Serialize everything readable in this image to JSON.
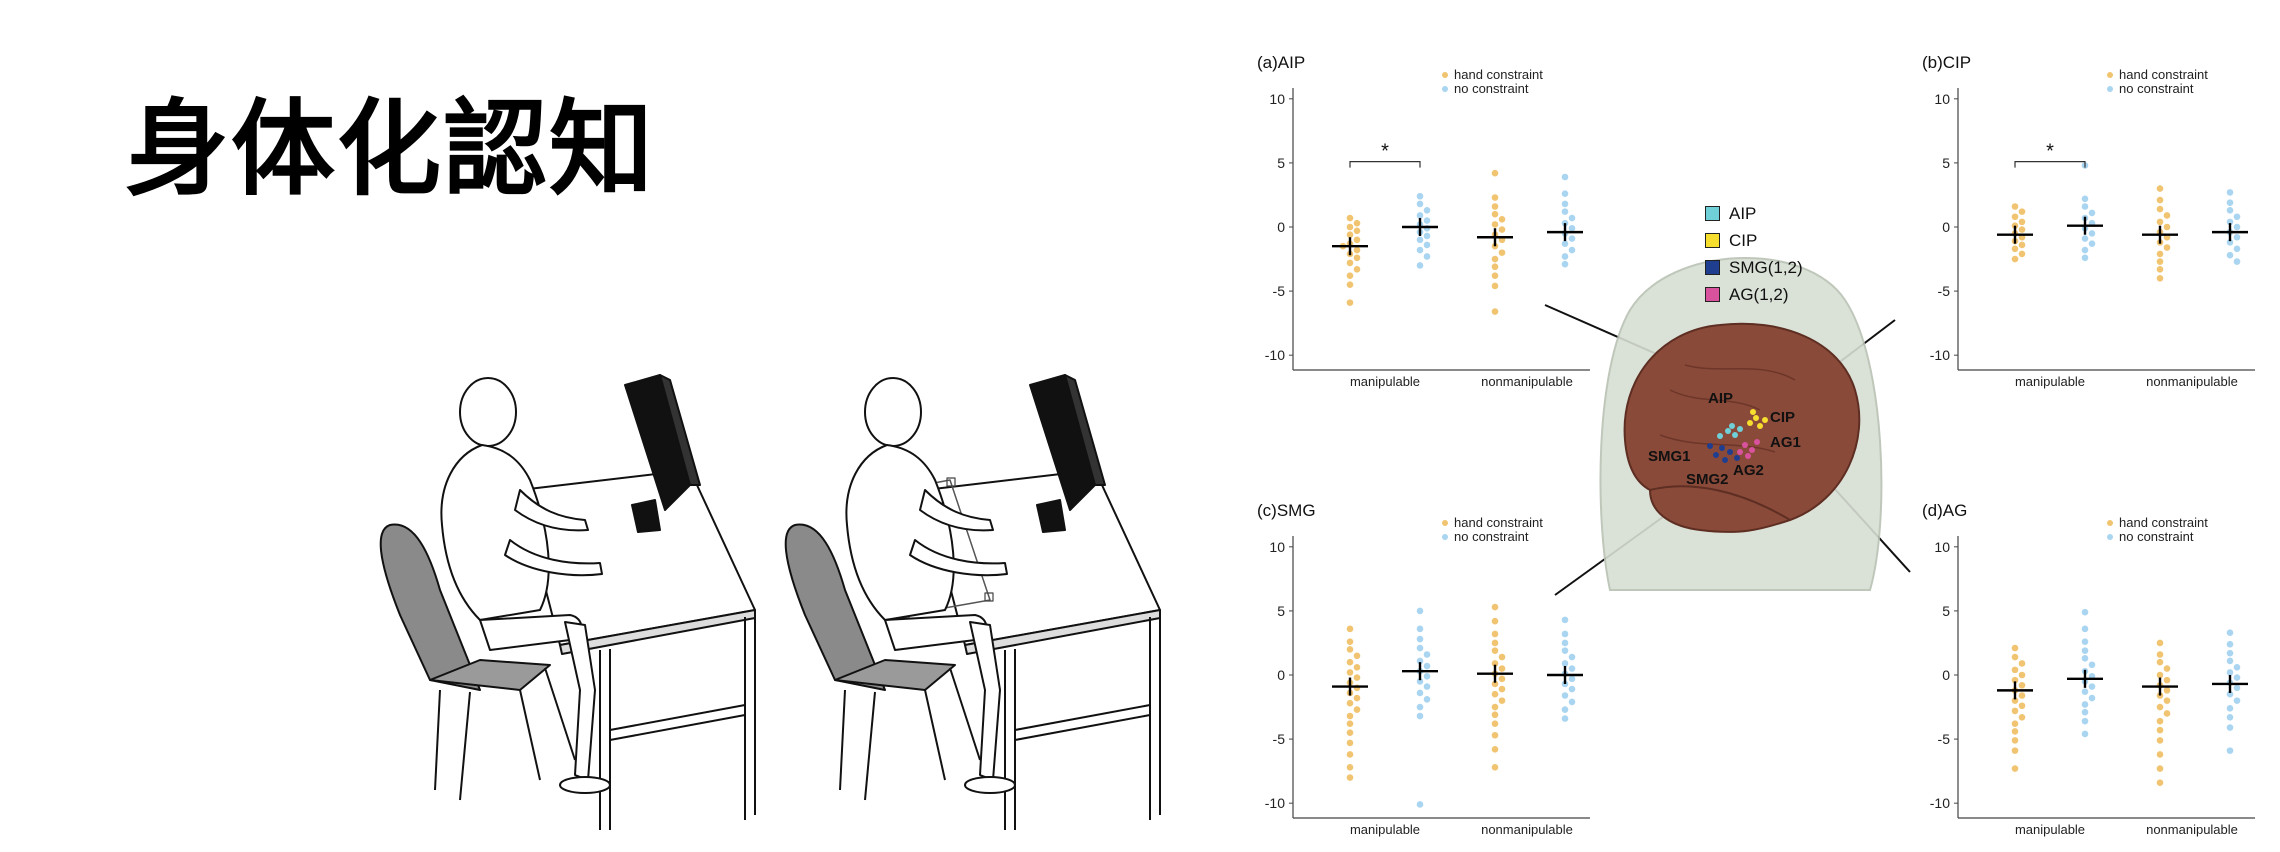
{
  "title": "身体化認知",
  "brain": {
    "legend": [
      {
        "label": "AIP",
        "color": "#6fd0d8"
      },
      {
        "label": "CIP",
        "color": "#f5de2e"
      },
      {
        "label": "SMG(1,2)",
        "color": "#1f3e8f"
      },
      {
        "label": "AG(1,2)",
        "color": "#d9529e"
      }
    ],
    "labels": [
      "AIP",
      "CIP",
      "AG1",
      "SMG1",
      "SMG2",
      "AG2"
    ]
  },
  "chart_data": [
    {
      "type": "scatter",
      "title": "(a)AIP",
      "ylim": [
        -11,
        11
      ],
      "yticks": [
        10,
        5,
        0,
        -5,
        -10
      ],
      "categories": [
        "manipulable",
        "nonmanipulable"
      ],
      "legend": {
        "placement": "top-right",
        "entries": [
          {
            "name": "hand constraint",
            "color": "#f0c470"
          },
          {
            "name": "no constraint",
            "color": "#a9d5f1"
          }
        ]
      },
      "means": [
        -1.5,
        0.0,
        -0.8,
        -0.4
      ],
      "significance": {
        "label": "*",
        "between": [
          0,
          1
        ]
      },
      "series": [
        {
          "name": "hand constraint",
          "values": [
            0.7,
            0.3,
            0.0,
            -0.3,
            -0.6,
            -1.0,
            -1.3,
            -1.5,
            -1.8,
            -2.1,
            -2.4,
            -2.8,
            -3.3,
            -3.8,
            -4.5,
            -5.9
          ],
          "values2": [
            4.2,
            2.3,
            1.6,
            1.0,
            0.6,
            0.2,
            -0.2,
            -0.6,
            -1.0,
            -1.5,
            -2.0,
            -2.5,
            -3.1,
            -3.8,
            -4.6,
            -6.6
          ]
        },
        {
          "name": "no constraint",
          "values": [
            2.4,
            1.8,
            1.3,
            0.9,
            0.5,
            0.2,
            -0.1,
            -0.4,
            -0.7,
            -1.0,
            -1.4,
            -1.8,
            -2.3,
            -3.0
          ],
          "values2": [
            3.9,
            2.6,
            1.8,
            1.2,
            0.7,
            0.3,
            -0.1,
            -0.5,
            -0.9,
            -1.3,
            -1.8,
            -2.3,
            -2.9
          ]
        }
      ]
    },
    {
      "type": "scatter",
      "title": "(b)CIP",
      "ylim": [
        -11,
        11
      ],
      "yticks": [
        10,
        5,
        0,
        -5,
        -10
      ],
      "categories": [
        "manipulable",
        "nonmanipulable"
      ],
      "legend": {
        "placement": "top-right",
        "entries": [
          {
            "name": "hand constraint",
            "color": "#f0c470"
          },
          {
            "name": "no constraint",
            "color": "#a9d5f1"
          }
        ]
      },
      "means": [
        -0.6,
        0.1,
        -0.6,
        -0.4
      ],
      "significance": {
        "label": "*",
        "between": [
          0,
          1
        ]
      },
      "series": [
        {
          "name": "hand constraint",
          "values": [
            1.6,
            1.2,
            0.8,
            0.4,
            0.1,
            -0.2,
            -0.5,
            -0.8,
            -1.1,
            -1.4,
            -1.7,
            -2.1,
            -2.5
          ],
          "values2": [
            3.0,
            2.1,
            1.4,
            0.9,
            0.4,
            0.0,
            -0.4,
            -0.8,
            -1.2,
            -1.6,
            -2.1,
            -2.7,
            -3.3,
            -4.0
          ]
        },
        {
          "name": "no constraint",
          "values": [
            4.8,
            2.2,
            1.6,
            1.1,
            0.7,
            0.3,
            -0.1,
            -0.5,
            -0.9,
            -1.3,
            -1.8,
            -2.4
          ],
          "values2": [
            2.7,
            1.9,
            1.3,
            0.8,
            0.4,
            0.0,
            -0.4,
            -0.8,
            -1.2,
            -1.7,
            -2.2,
            -2.7
          ]
        }
      ]
    },
    {
      "type": "scatter",
      "title": "(c)SMG",
      "ylim": [
        -11,
        11
      ],
      "yticks": [
        10,
        5,
        0,
        -5,
        -10
      ],
      "categories": [
        "manipulable",
        "nonmanipulable"
      ],
      "legend": {
        "placement": "top-right",
        "entries": [
          {
            "name": "hand constraint",
            "color": "#f0c470"
          },
          {
            "name": "no constraint",
            "color": "#a9d5f1"
          }
        ]
      },
      "means": [
        -0.9,
        0.3,
        0.1,
        0.0
      ],
      "significance": null,
      "series": [
        {
          "name": "hand constraint",
          "values": [
            3.6,
            2.6,
            2.0,
            1.5,
            1.0,
            0.6,
            0.2,
            -0.2,
            -0.6,
            -1.0,
            -1.4,
            -1.8,
            -2.2,
            -2.7,
            -3.2,
            -3.8,
            -4.5,
            -5.3,
            -6.2,
            -7.2,
            -8.0
          ],
          "values2": [
            5.3,
            4.2,
            3.2,
            2.5,
            1.9,
            1.4,
            0.9,
            0.5,
            0.1,
            -0.3,
            -0.7,
            -1.1,
            -1.5,
            -2.0,
            -2.5,
            -3.1,
            -3.8,
            -4.7,
            -5.8,
            -7.2
          ]
        },
        {
          "name": "no constraint",
          "values": [
            5.0,
            3.6,
            2.8,
            2.1,
            1.6,
            1.1,
            0.7,
            0.3,
            -0.1,
            -0.5,
            -0.9,
            -1.4,
            -1.9,
            -2.5,
            -3.2,
            -10.1
          ],
          "values2": [
            4.3,
            3.2,
            2.5,
            1.9,
            1.4,
            0.9,
            0.5,
            0.1,
            -0.3,
            -0.7,
            -1.1,
            -1.6,
            -2.1,
            -2.7,
            -3.4
          ]
        }
      ]
    },
    {
      "type": "scatter",
      "title": "(d)AG",
      "ylim": [
        -11,
        11
      ],
      "yticks": [
        10,
        5,
        0,
        -5,
        -10
      ],
      "categories": [
        "manipulable",
        "nonmanipulable"
      ],
      "legend": {
        "placement": "top-right",
        "entries": [
          {
            "name": "hand constraint",
            "color": "#f0c470"
          },
          {
            "name": "no constraint",
            "color": "#a9d5f1"
          }
        ]
      },
      "means": [
        -1.2,
        -0.3,
        -0.9,
        -0.7
      ],
      "significance": null,
      "series": [
        {
          "name": "hand constraint",
          "values": [
            2.1,
            1.4,
            0.9,
            0.4,
            0.0,
            -0.4,
            -0.8,
            -1.2,
            -1.6,
            -2.0,
            -2.4,
            -2.8,
            -3.3,
            -3.8,
            -4.4,
            -5.1,
            -5.9,
            -7.3
          ],
          "values2": [
            2.5,
            1.6,
            1.0,
            0.5,
            0.0,
            -0.4,
            -0.8,
            -1.2,
            -1.6,
            -2.0,
            -2.5,
            -3.0,
            -3.6,
            -4.3,
            -5.1,
            -6.2,
            -7.3,
            -8.4
          ]
        },
        {
          "name": "no constraint",
          "values": [
            4.9,
            3.6,
            2.6,
            1.9,
            1.3,
            0.8,
            0.3,
            -0.1,
            -0.5,
            -0.9,
            -1.3,
            -1.8,
            -2.3,
            -2.9,
            -3.6,
            -4.6
          ],
          "values2": [
            3.3,
            2.4,
            1.7,
            1.1,
            0.6,
            0.2,
            -0.2,
            -0.6,
            -1.0,
            -1.5,
            -2.0,
            -2.6,
            -3.3,
            -4.1,
            -5.9
          ]
        }
      ]
    }
  ]
}
